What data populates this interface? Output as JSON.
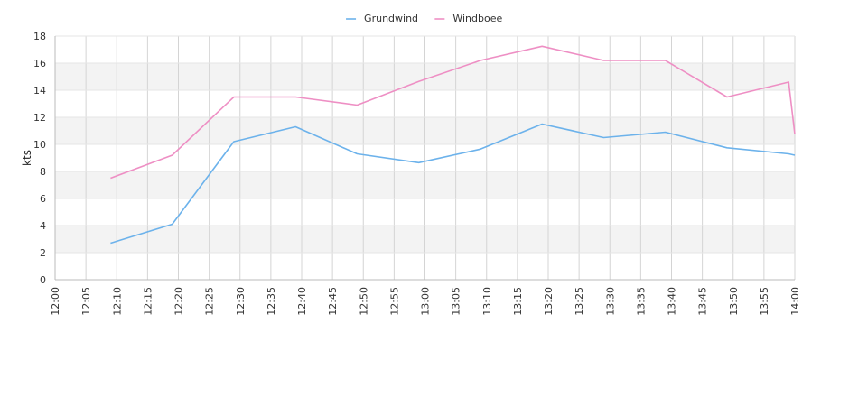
{
  "chart_data": {
    "type": "line",
    "title": "",
    "ylabel": "kts",
    "xlabel": "",
    "ylim": [
      0,
      18
    ],
    "yticks": [
      "0",
      "2",
      "4",
      "6",
      "8",
      "10",
      "12",
      "14",
      "16",
      "18"
    ],
    "xticks": [
      "12:00",
      "12:05",
      "12:10",
      "12:15",
      "12:20",
      "12:25",
      "12:30",
      "12:35",
      "12:40",
      "12:45",
      "12:50",
      "12:55",
      "13:00",
      "13:05",
      "13:10",
      "13:15",
      "13:20",
      "13:25",
      "13:30",
      "13:35",
      "13:40",
      "13:45",
      "13:50",
      "13:55",
      "14:00"
    ],
    "grid": true,
    "legend_position": "top-center",
    "series": [
      {
        "name": "Grundwind",
        "color": "#6cb2eb",
        "points": [
          [
            "12:09",
            2.7
          ],
          [
            "12:19",
            4.1
          ],
          [
            "12:29",
            10.2
          ],
          [
            "12:39",
            11.3
          ],
          [
            "12:49",
            9.3
          ],
          [
            "12:59",
            8.65
          ],
          [
            "13:09",
            9.65
          ],
          [
            "13:19",
            11.5
          ],
          [
            "13:29",
            10.5
          ],
          [
            "13:39",
            10.9
          ],
          [
            "13:49",
            9.75
          ],
          [
            "13:59",
            9.3
          ],
          [
            "14:00",
            9.2
          ]
        ]
      },
      {
        "name": "Windboee",
        "color": "#ee8fc4",
        "points": [
          [
            "12:09",
            7.5
          ],
          [
            "12:19",
            9.2
          ],
          [
            "12:29",
            13.5
          ],
          [
            "12:39",
            13.5
          ],
          [
            "12:49",
            12.9
          ],
          [
            "12:59",
            14.65
          ],
          [
            "13:09",
            16.2
          ],
          [
            "13:19",
            17.25
          ],
          [
            "13:29",
            16.2
          ],
          [
            "13:39",
            16.2
          ],
          [
            "13:49",
            13.5
          ],
          [
            "13:59",
            14.6
          ],
          [
            "14:00",
            10.75
          ]
        ]
      }
    ]
  }
}
